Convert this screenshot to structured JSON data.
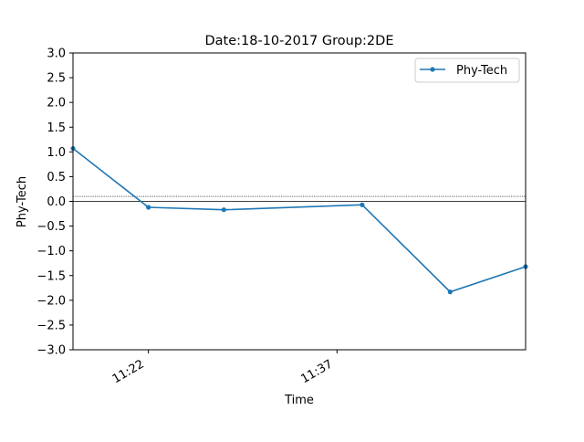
{
  "chart_data": {
    "type": "line",
    "title": "Date:18-10-2017 Group:2DE",
    "xlabel": "Time",
    "ylabel": "Phy-Tech",
    "ylim": [
      -3.0,
      3.0
    ],
    "xlim": [
      "11:16",
      "11:52"
    ],
    "y_ticks": [
      "3.0",
      "2.5",
      "2.0",
      "1.5",
      "1.0",
      "0.5",
      "0.0",
      "−0.5",
      "−1.0",
      "−1.5",
      "−2.0",
      "−2.5",
      "−3.0"
    ],
    "x_ticks": [
      {
        "value": "11:22",
        "label": "11:22"
      },
      {
        "value": "11:37",
        "label": "11:37"
      }
    ],
    "grid": false,
    "legend_position": "top-right",
    "series": [
      {
        "name": "Phy-Tech",
        "color": "#1f77b4",
        "marker": "point",
        "x": [
          "11:16",
          "11:22",
          "11:28",
          "11:39",
          "11:46",
          "11:52"
        ],
        "y": [
          1.07,
          -0.12,
          -0.17,
          -0.07,
          -1.83,
          -1.32
        ]
      }
    ],
    "reference_lines": [
      {
        "y": 0.0,
        "style": "solid",
        "color": "#000000"
      },
      {
        "y": 0.1,
        "style": "dotted",
        "color": "#000000"
      }
    ]
  }
}
